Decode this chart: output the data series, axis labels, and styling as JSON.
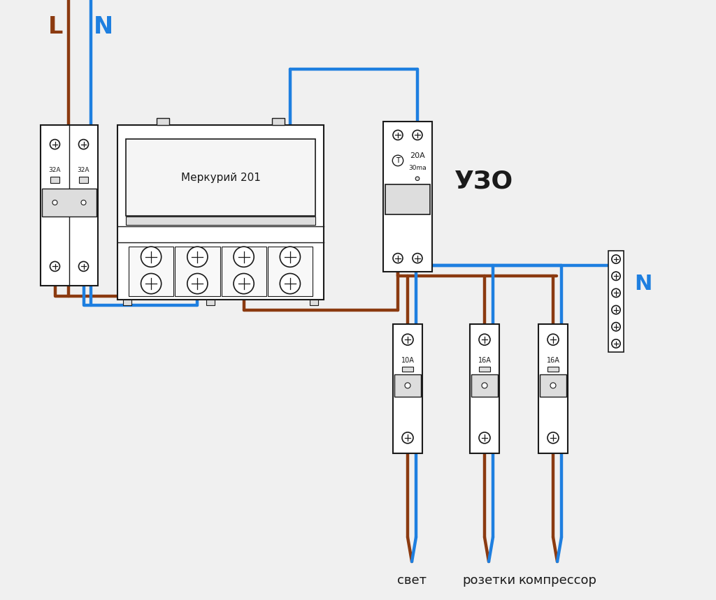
{
  "bg_color": "#f0f0f0",
  "brown": "#8B3A10",
  "blue": "#1E7FE0",
  "black": "#1a1a1a",
  "gray": "#aaaaaa",
  "white": "#ffffff",
  "lgray": "#dddddd",
  "title_L": "L",
  "title_N": "N",
  "title_N2": "N",
  "title_UZO": "УЗО",
  "title_meter": "Меркурий 201",
  "label_32A": "32A",
  "label_20A": "20A",
  "label_30ma": "30ma",
  "label_10A": "10A",
  "label_16A": "16A",
  "label_svet": "свет",
  "label_rozetki": "розетки",
  "label_compressor": "компрессор",
  "lw_wire": 3.2
}
